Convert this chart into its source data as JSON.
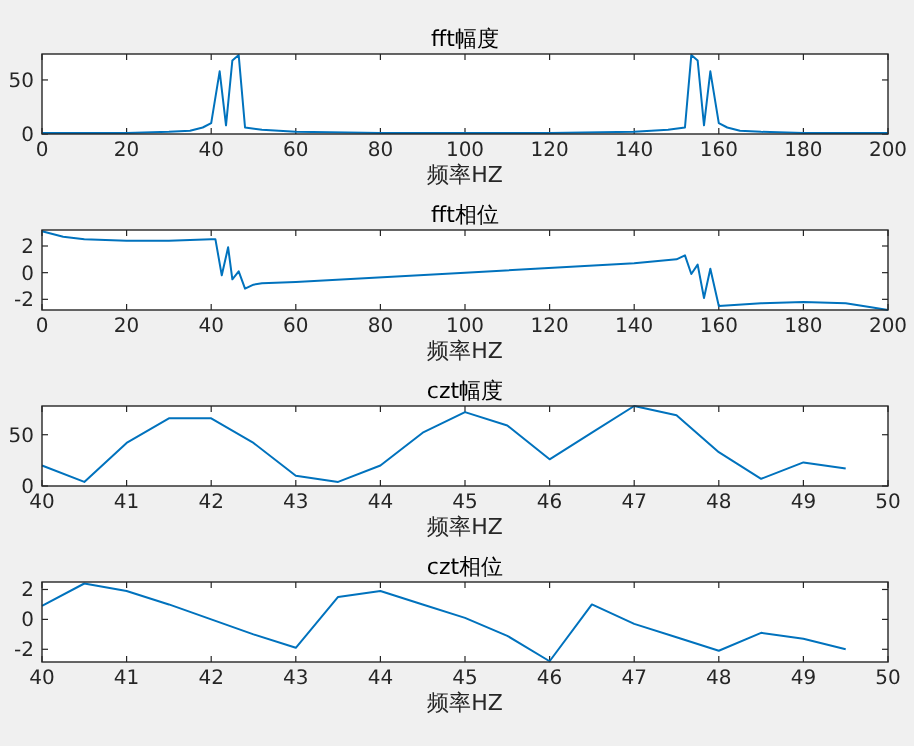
{
  "chart_data": [
    {
      "type": "line",
      "title": "fft幅度",
      "xlabel": "频率HZ",
      "xlim": [
        0,
        200
      ],
      "xticks": [
        0,
        20,
        40,
        60,
        80,
        100,
        120,
        140,
        160,
        180,
        200
      ],
      "ylim": [
        0,
        74
      ],
      "yticks": [
        0,
        50
      ],
      "series": [
        {
          "color": "#0072bd",
          "x": [
            0,
            20,
            30,
            35,
            38,
            40,
            42,
            43.5,
            45,
            46.5,
            48,
            52,
            60,
            80,
            100,
            120,
            140,
            148,
            152,
            153.5,
            155,
            156.5,
            158,
            160,
            162,
            165,
            170,
            180,
            200
          ],
          "values": [
            1,
            1,
            2,
            3,
            6,
            10,
            58,
            8,
            68,
            73,
            6,
            4,
            2,
            1,
            1,
            1,
            2,
            4,
            6,
            73,
            68,
            8,
            58,
            10,
            6,
            3,
            2,
            1,
            1
          ]
        }
      ]
    },
    {
      "type": "line",
      "title": "fft相位",
      "xlabel": "频率HZ",
      "xlim": [
        0,
        200
      ],
      "xticks": [
        0,
        20,
        40,
        60,
        80,
        100,
        120,
        140,
        160,
        180,
        200
      ],
      "ylim": [
        -2.8,
        3.2
      ],
      "yticks": [
        -2,
        0,
        2
      ],
      "series": [
        {
          "color": "#0072bd",
          "x": [
            0,
            5,
            10,
            20,
            30,
            40,
            41,
            42.5,
            44,
            45,
            46.5,
            48,
            50,
            52,
            60,
            100,
            140,
            150,
            152,
            153.5,
            155,
            156.5,
            158,
            160,
            170,
            180,
            190,
            196,
            200
          ],
          "values": [
            3.1,
            2.7,
            2.5,
            2.4,
            2.4,
            2.5,
            2.5,
            -0.2,
            1.9,
            -0.5,
            0.1,
            -1.2,
            -0.9,
            -0.8,
            -0.7,
            0,
            0.7,
            1.0,
            1.3,
            -0.1,
            0.6,
            -1.9,
            0.3,
            -2.5,
            -2.3,
            -2.2,
            -2.3,
            -2.6,
            -2.8
          ]
        }
      ]
    },
    {
      "type": "line",
      "title": "czt幅度",
      "xlabel": "频率HZ",
      "xlim": [
        40,
        50
      ],
      "xticks": [
        40,
        41,
        42,
        43,
        44,
        45,
        46,
        47,
        48,
        49,
        50
      ],
      "ylim": [
        0,
        78
      ],
      "yticks": [
        0,
        50
      ],
      "series": [
        {
          "color": "#0072bd",
          "x": [
            40,
            40.5,
            41,
            41.5,
            42,
            42.5,
            43,
            43.5,
            44,
            44.5,
            45,
            45.5,
            46,
            46.5,
            47,
            47.5,
            48,
            48.5,
            49,
            49.5
          ],
          "values": [
            20,
            4,
            42,
            66,
            66,
            42,
            10,
            4,
            20,
            52,
            72,
            59,
            26,
            52,
            78,
            69,
            33,
            7,
            23,
            17
          ]
        }
      ]
    },
    {
      "type": "line",
      "title": "czt相位",
      "xlabel": "频率HZ",
      "xlim": [
        40,
        50
      ],
      "xticks": [
        40,
        41,
        42,
        43,
        44,
        45,
        46,
        47,
        48,
        49,
        50
      ],
      "ylim": [
        -2.85,
        2.5
      ],
      "yticks": [
        -2,
        0,
        2
      ],
      "series": [
        {
          "color": "#0072bd",
          "x": [
            40,
            40.5,
            41,
            41.5,
            42,
            42.5,
            43,
            43.5,
            44,
            44.5,
            45,
            45.5,
            46,
            46.5,
            47,
            47.5,
            48,
            48.5,
            49,
            49.5
          ],
          "values": [
            0.9,
            2.4,
            1.9,
            1.0,
            0,
            -1.0,
            -1.9,
            1.5,
            1.9,
            1.0,
            0.1,
            -1.1,
            -2.8,
            1.0,
            -0.3,
            -1.2,
            -2.1,
            -0.9,
            -1.3,
            -2.0
          ]
        }
      ]
    }
  ]
}
